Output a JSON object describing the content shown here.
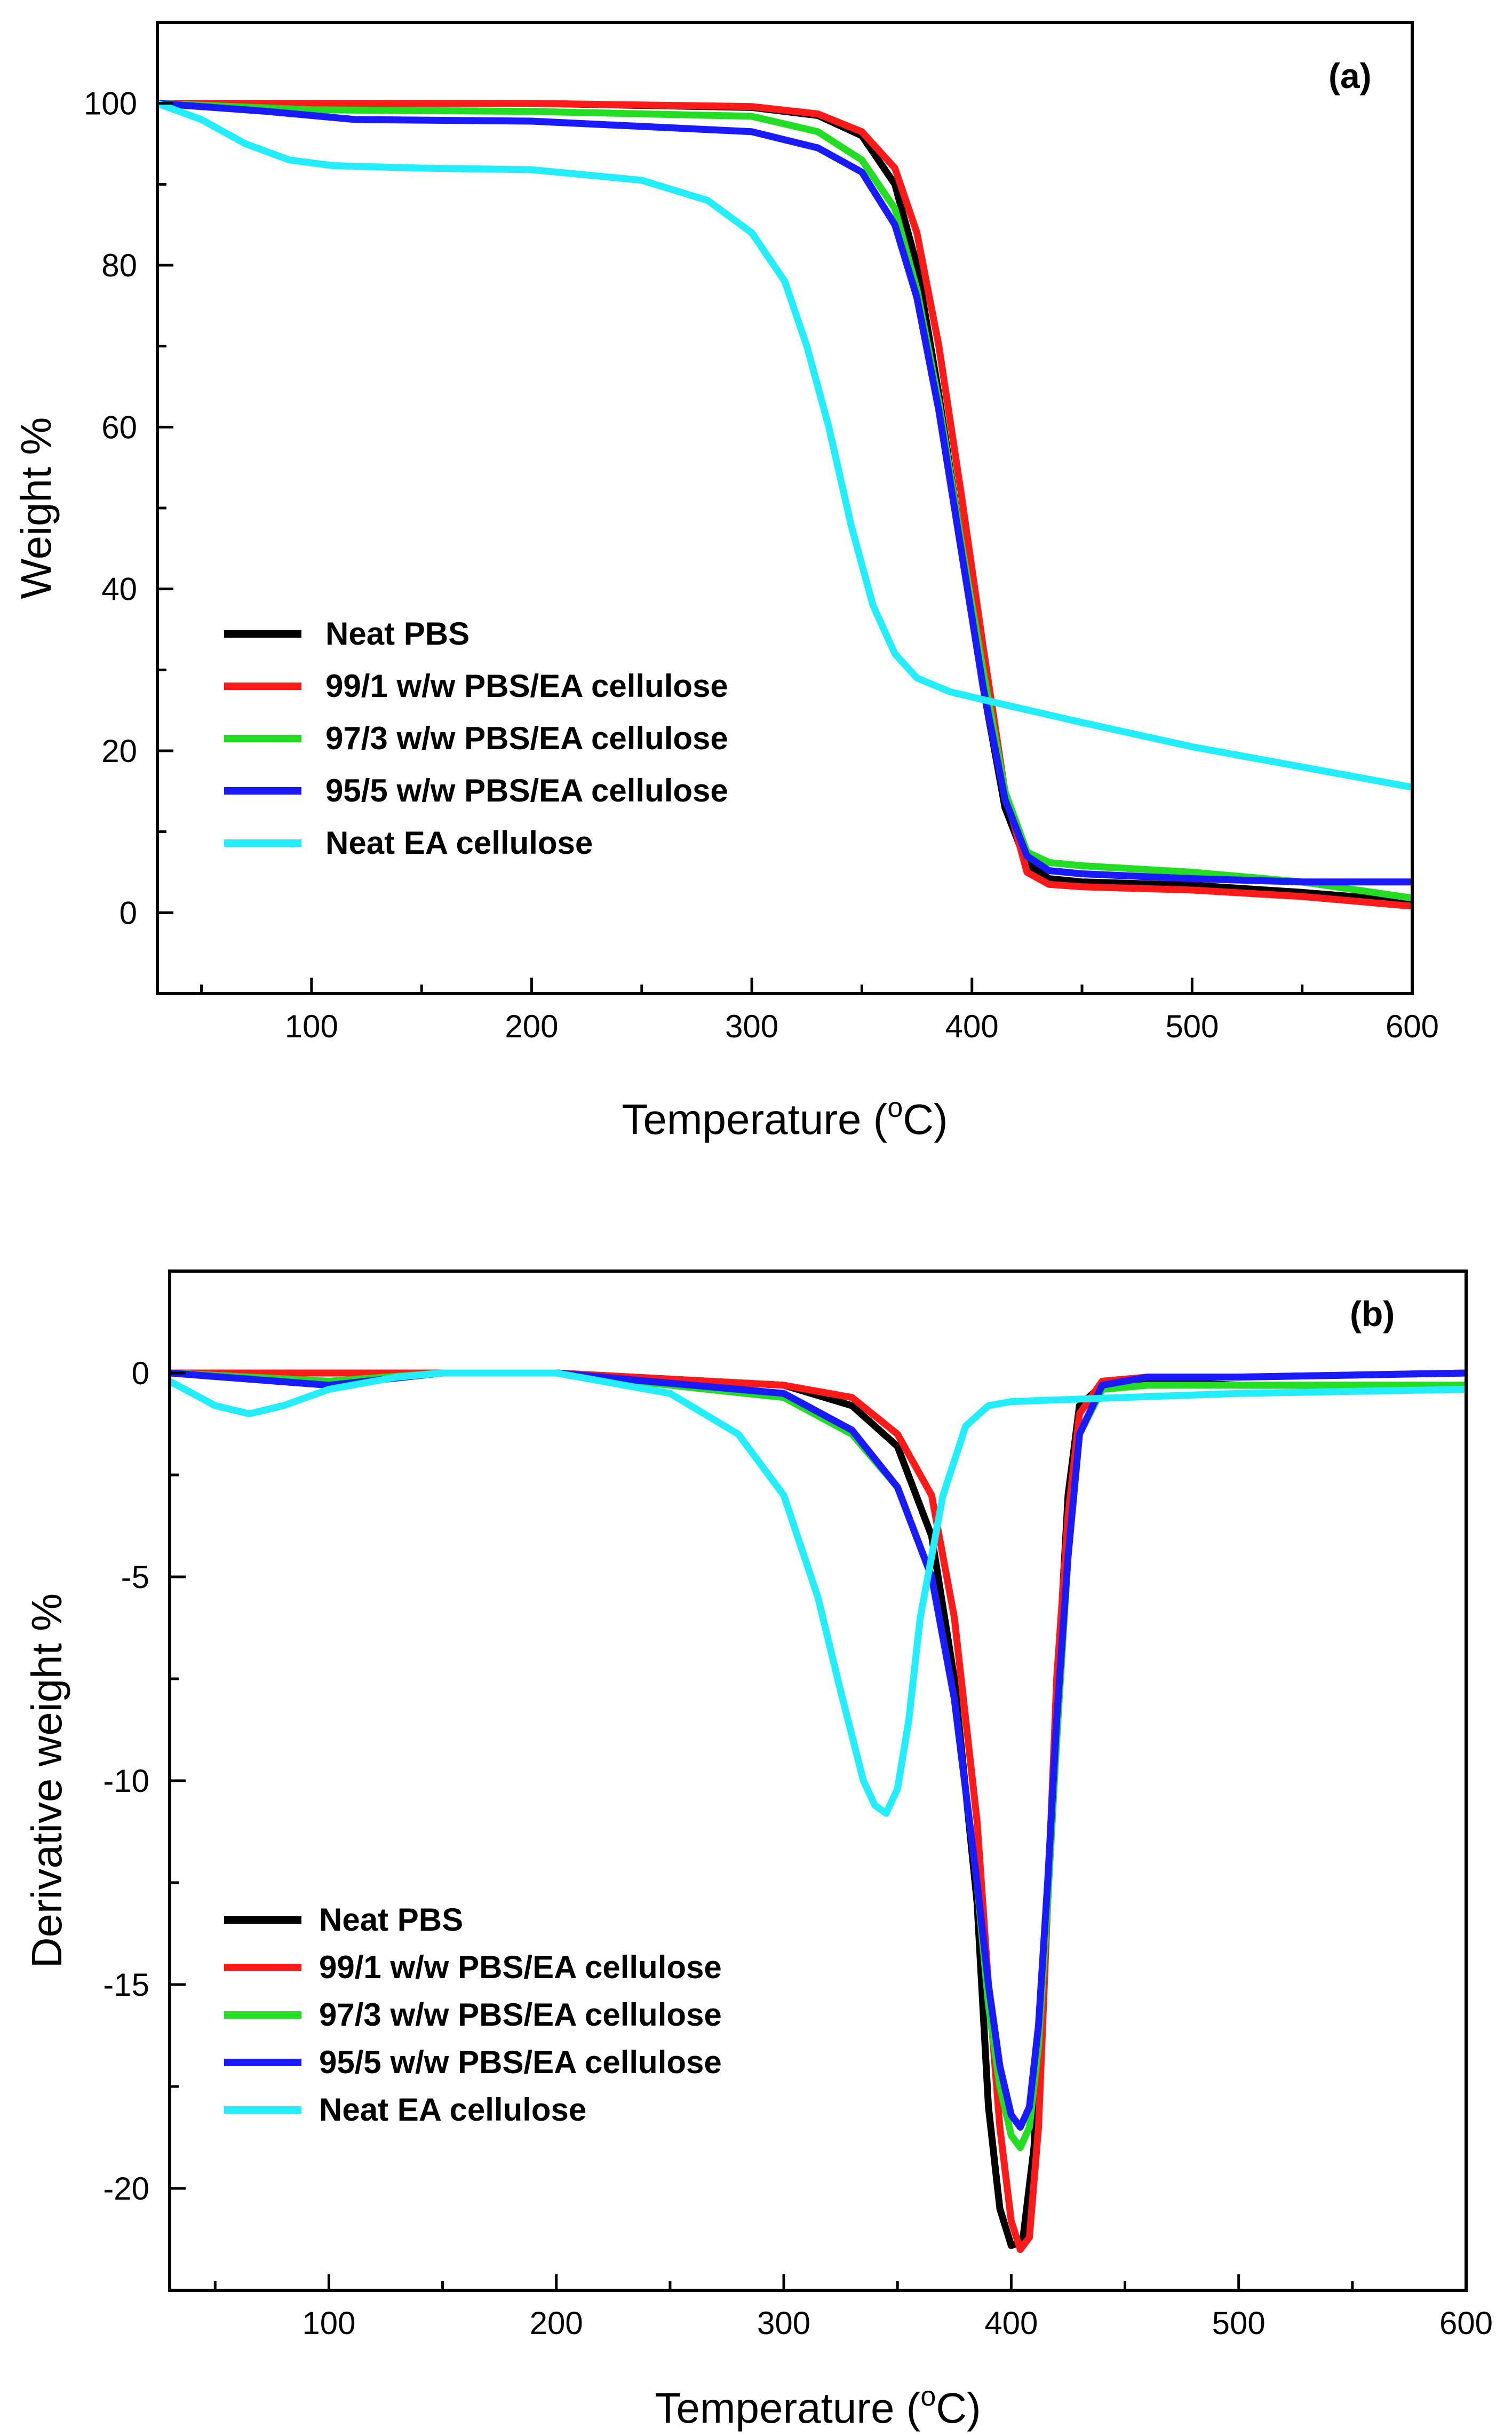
{
  "figure_tags": {
    "a": "(a)",
    "b": "(b)"
  },
  "colors": {
    "neat_pbs": "#000000",
    "pbs_99_1": "#ff1a1a",
    "pbs_97_3": "#22dd22",
    "pbs_95_5": "#1a1aff",
    "neat_ea": "#22eeff"
  },
  "chart_data": [
    {
      "type": "line",
      "panel": "(a)",
      "title": "",
      "xlabel": "Temperature (",
      "xlabel_sup": "o",
      "xlabel_suffix": "C)",
      "ylabel": "Weight %",
      "xlim": [
        30,
        600
      ],
      "ylim": [
        -10,
        110
      ],
      "xticks": [
        100,
        200,
        300,
        400,
        500,
        600
      ],
      "yticks": [
        0,
        20,
        40,
        60,
        80,
        100
      ],
      "legend_position": "lower-left",
      "series": [
        {
          "name": "Neat PBS",
          "color_key": "neat_pbs",
          "x": [
            30,
            100,
            200,
            300,
            330,
            350,
            365,
            375,
            385,
            395,
            405,
            415,
            425,
            435,
            450,
            500,
            550,
            600
          ],
          "y": [
            100,
            100,
            100,
            99.5,
            98.5,
            96,
            90,
            80,
            64,
            46,
            28,
            13,
            6,
            4.2,
            3.8,
            3.4,
            2.5,
            1.4
          ]
        },
        {
          "name": "99/1 w/w PBS/EA cellulose",
          "color_key": "pbs_99_1",
          "x": [
            30,
            100,
            200,
            300,
            330,
            350,
            365,
            375,
            385,
            395,
            405,
            415,
            425,
            435,
            450,
            500,
            550,
            600
          ],
          "y": [
            100,
            100,
            100,
            99.6,
            98.7,
            96.5,
            92,
            84,
            70,
            52,
            33,
            15,
            5,
            3.5,
            3.2,
            2.8,
            2,
            0.8
          ]
        },
        {
          "name": "97/3 w/w PBS/EA cellulose",
          "color_key": "pbs_97_3",
          "x": [
            30,
            100,
            200,
            300,
            330,
            350,
            365,
            375,
            385,
            395,
            405,
            415,
            425,
            435,
            450,
            500,
            550,
            600
          ],
          "y": [
            100,
            99.2,
            99,
            98.4,
            96.5,
            93,
            87,
            77,
            63,
            46,
            30,
            15,
            7.5,
            6.2,
            5.8,
            5,
            3.8,
            1.8
          ]
        },
        {
          "name": "95/5 w/w PBS/EA cellulose",
          "color_key": "pbs_95_5",
          "x": [
            30,
            80,
            120,
            200,
            300,
            330,
            350,
            365,
            375,
            385,
            395,
            405,
            415,
            425,
            435,
            450,
            500,
            550,
            600
          ],
          "y": [
            100,
            99,
            98,
            97.8,
            96.5,
            94.5,
            91.5,
            85,
            76,
            62,
            45,
            28,
            14,
            7,
            5.2,
            4.8,
            4.2,
            3.8,
            3.8
          ]
        },
        {
          "name": "Neat EA cellulose",
          "color_key": "neat_ea",
          "x": [
            30,
            50,
            70,
            90,
            110,
            150,
            200,
            250,
            280,
            300,
            315,
            325,
            335,
            345,
            355,
            365,
            375,
            390,
            410,
            450,
            500,
            550,
            600
          ],
          "y": [
            100,
            98,
            95,
            93,
            92.3,
            92,
            91.8,
            90.5,
            88,
            84,
            78,
            70,
            60,
            48,
            38,
            32,
            29,
            27.3,
            26,
            23.5,
            20.5,
            18,
            15.5
          ]
        }
      ]
    },
    {
      "type": "line",
      "panel": "(b)",
      "title": "",
      "xlabel": "Temperature (",
      "xlabel_sup": "o",
      "xlabel_suffix": "C)",
      "ylabel": "Derivative weight %",
      "xlim": [
        30,
        600
      ],
      "ylim": [
        -22.5,
        2.5
      ],
      "xticks": [
        100,
        200,
        300,
        400,
        500,
        600
      ],
      "yticks": [
        0,
        -5,
        -10,
        -15,
        -20
      ],
      "legend_position": "lower-left",
      "series": [
        {
          "name": "Neat PBS",
          "color_key": "neat_pbs",
          "x": [
            30,
            100,
            200,
            300,
            330,
            350,
            365,
            375,
            385,
            390,
            395,
            400,
            405,
            410,
            415,
            420,
            425,
            430,
            440,
            460,
            500,
            600
          ],
          "y": [
            0,
            0,
            0,
            -0.3,
            -0.8,
            -1.8,
            -4,
            -7.5,
            -13,
            -18,
            -20.5,
            -21.4,
            -21.3,
            -19,
            -14,
            -8,
            -3,
            -0.8,
            -0.3,
            -0.2,
            -0.3,
            -0.3
          ]
        },
        {
          "name": "99/1 w/w PBS/EA cellulose",
          "color_key": "pbs_99_1",
          "x": [
            30,
            100,
            200,
            300,
            330,
            350,
            365,
            375,
            385,
            390,
            395,
            400,
            404,
            408,
            412,
            416,
            420,
            425,
            430,
            440,
            460,
            500,
            600
          ],
          "y": [
            0,
            0,
            0,
            -0.3,
            -0.6,
            -1.5,
            -3,
            -6,
            -11,
            -15,
            -18.5,
            -20.8,
            -21.5,
            -21.2,
            -18.5,
            -13,
            -7.5,
            -3.5,
            -1,
            -0.2,
            -0.1,
            -0.1,
            0
          ]
        },
        {
          "name": "97/3 w/w PBS/EA cellulose",
          "color_key": "pbs_97_3",
          "x": [
            30,
            100,
            150,
            200,
            300,
            330,
            350,
            365,
            375,
            385,
            390,
            395,
            400,
            404,
            408,
            412,
            416,
            420,
            425,
            430,
            440,
            460,
            500,
            600
          ],
          "y": [
            0,
            -0.2,
            0,
            0,
            -0.6,
            -1.5,
            -2.8,
            -5,
            -8,
            -12.5,
            -15.5,
            -17.5,
            -18.7,
            -19,
            -18.5,
            -16.5,
            -13,
            -9,
            -4.5,
            -1.5,
            -0.4,
            -0.3,
            -0.3,
            -0.3
          ]
        },
        {
          "name": "95/5 w/w PBS/EA cellulose",
          "color_key": "pbs_95_5",
          "x": [
            30,
            100,
            150,
            200,
            300,
            330,
            350,
            365,
            375,
            385,
            390,
            395,
            400,
            404,
            408,
            412,
            416,
            420,
            425,
            430,
            440,
            460,
            500,
            600
          ],
          "y": [
            0,
            -0.3,
            0,
            0,
            -0.5,
            -1.4,
            -2.8,
            -5,
            -8,
            -12.5,
            -15,
            -17,
            -18.2,
            -18.5,
            -18,
            -16,
            -12.5,
            -8.5,
            -4.5,
            -1.5,
            -0.3,
            -0.1,
            -0.1,
            0
          ]
        },
        {
          "name": "Neat EA cellulose",
          "color_key": "neat_ea",
          "x": [
            30,
            50,
            65,
            80,
            100,
            130,
            150,
            200,
            250,
            280,
            300,
            315,
            325,
            335,
            340,
            345,
            350,
            355,
            360,
            370,
            380,
            390,
            400,
            450,
            500,
            600
          ],
          "y": [
            -0.2,
            -0.8,
            -1,
            -0.8,
            -0.4,
            -0.1,
            0,
            0,
            -0.5,
            -1.5,
            -3,
            -5.5,
            -7.8,
            -10,
            -10.6,
            -10.8,
            -10.2,
            -8.5,
            -6,
            -3,
            -1.3,
            -0.8,
            -0.7,
            -0.6,
            -0.5,
            -0.4
          ]
        }
      ]
    }
  ]
}
